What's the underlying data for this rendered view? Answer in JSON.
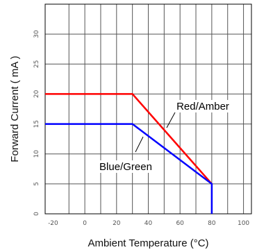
{
  "chart_data": {
    "type": "line",
    "xlabel": "Ambient Temperature (°C)",
    "ylabel": "Forward Current ( mA )",
    "xlim": [
      -25,
      105
    ],
    "ylim": [
      0,
      35
    ],
    "x_ticks": [
      "-20",
      "0",
      "20",
      "40",
      "60",
      "80",
      "100"
    ],
    "y_ticks": [
      "0",
      "5",
      "10",
      "15",
      "20",
      "25",
      "30"
    ],
    "grid": true,
    "series": [
      {
        "name": "Red/Amber",
        "color": "#ff0000",
        "points": [
          [
            -25,
            20
          ],
          [
            30,
            20
          ],
          [
            80,
            5
          ]
        ]
      },
      {
        "name": "Blue/Green",
        "color": "#0000ff",
        "points": [
          [
            -25,
            15
          ],
          [
            30,
            15
          ],
          [
            80,
            5
          ],
          [
            80,
            0
          ]
        ]
      }
    ],
    "annotations": [
      {
        "text": "Red/Amber",
        "target": [
          62,
          12
        ]
      },
      {
        "text": "Blue/Green",
        "target": [
          50,
          9
        ]
      }
    ]
  }
}
